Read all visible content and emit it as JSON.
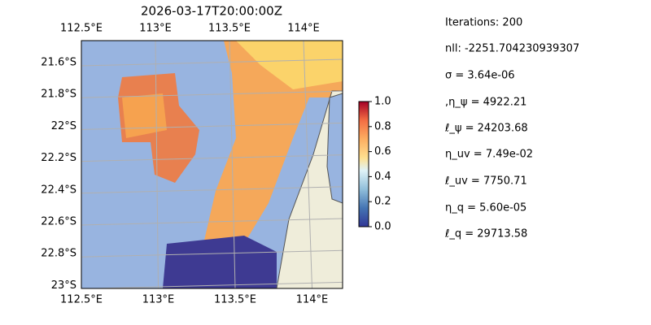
{
  "map": {
    "title": "2026-03-17T20:00:00Z",
    "lon_ticks": [
      {
        "value": 112.5,
        "label": "112.5°E"
      },
      {
        "value": 113,
        "label": "113°E"
      },
      {
        "value": 113.5,
        "label": "113.5°E"
      },
      {
        "value": 114,
        "label": "114°E"
      }
    ],
    "lat_ticks": [
      {
        "value": -21.6,
        "label": "21.6°S"
      },
      {
        "value": -21.8,
        "label": "21.8°S"
      },
      {
        "value": -22,
        "label": "22°S"
      },
      {
        "value": -22.2,
        "label": "22.2°S"
      },
      {
        "value": -22.4,
        "label": "22.4°S"
      },
      {
        "value": -22.6,
        "label": "22.6°S"
      },
      {
        "value": -22.8,
        "label": "22.8°S"
      },
      {
        "value": -23,
        "label": "23°S"
      }
    ],
    "colorbar": {
      "lim": [
        0,
        1
      ],
      "ticks": [
        {
          "value": 0,
          "label": "0.0"
        },
        {
          "value": 0.2,
          "label": "0.2"
        },
        {
          "value": 0.4,
          "label": "0.4"
        },
        {
          "value": 0.6,
          "label": "0.6"
        },
        {
          "value": 0.8,
          "label": "0.8"
        },
        {
          "value": 1,
          "label": "1.0"
        }
      ]
    },
    "params": [
      "Iterations: 200",
      "nll: -2251.704230939307",
      "σ = 3.64e-06",
      ",η_ψ = 4922.21",
      "ℓ_ψ = 24203.68",
      "η_uv = 7.49e-02",
      "ℓ_uv = 7750.71",
      "η_q = 5.60e-05",
      "ℓ_q = 29713.58"
    ]
  }
}
